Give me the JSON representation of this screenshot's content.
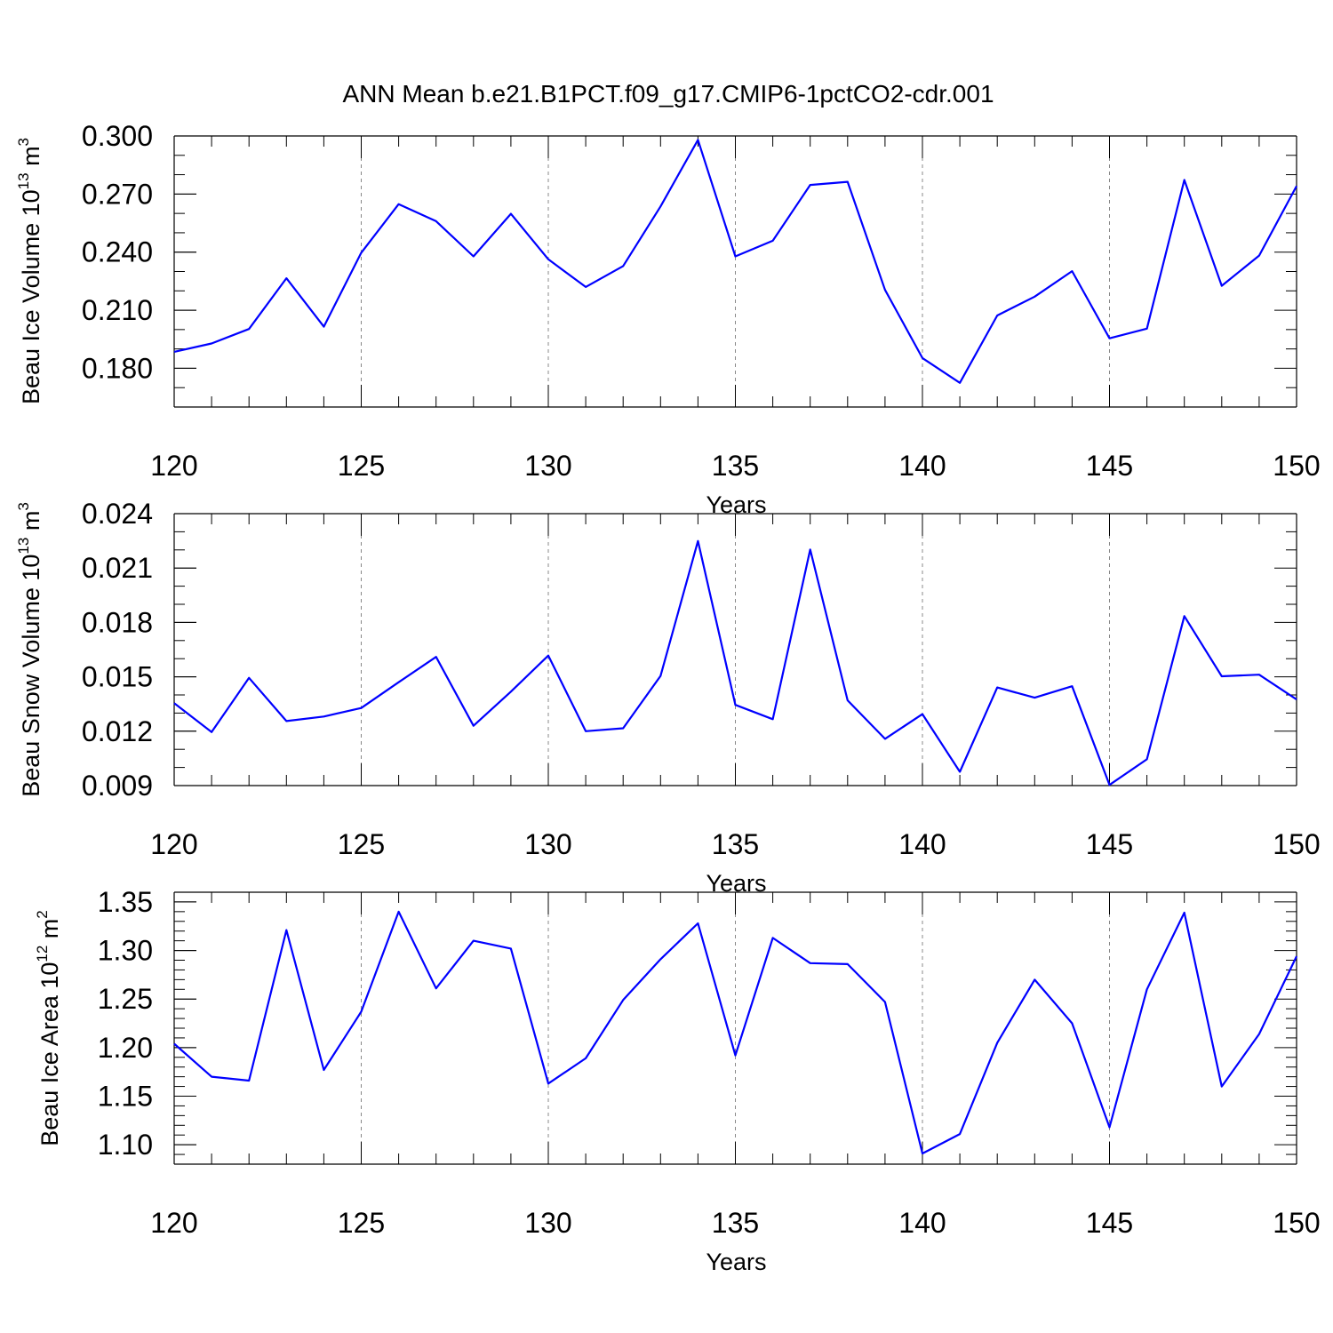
{
  "title": "ANN Mean b.e21.B1PCT.f09_g17.CMIP6-1pctCO2-cdr.001",
  "chart_data": [
    {
      "type": "line",
      "xlabel": "Years",
      "ylabel": {
        "base": "Beau Ice Volume 10",
        "exponent": "13",
        "unit": " m",
        "unit_exponent": "3"
      },
      "xlim": [
        120,
        150
      ],
      "ylim": [
        0.16,
        0.3
      ],
      "x_ticks": [
        120,
        125,
        130,
        135,
        140,
        145,
        150
      ],
      "x_tick_labels": [
        "120",
        "125",
        "130",
        "135",
        "140",
        "145",
        "150"
      ],
      "y_ticks": [
        0.18,
        0.21,
        0.24,
        0.27,
        0.3
      ],
      "y_tick_labels": [
        "0.180",
        "0.210",
        "0.240",
        "0.270",
        "0.300"
      ],
      "x_minor_step": 1,
      "y_minor_step": 0.01,
      "grid": "dashed vertical at major x ticks",
      "line_color": "#0000ff",
      "x": [
        120,
        121,
        122,
        123,
        124,
        125,
        126,
        127,
        128,
        129,
        130,
        131,
        132,
        133,
        134,
        135,
        136,
        137,
        138,
        139,
        140,
        141,
        142,
        143,
        144,
        145,
        146,
        147,
        148,
        149,
        150
      ],
      "values": [
        0.1885,
        0.1928,
        0.2003,
        0.2265,
        0.2015,
        0.2397,
        0.2648,
        0.256,
        0.2378,
        0.2598,
        0.2363,
        0.222,
        0.2328,
        0.2636,
        0.298,
        0.2378,
        0.2459,
        0.2747,
        0.2763,
        0.2205,
        0.1853,
        0.1725,
        0.2073,
        0.217,
        0.2302,
        0.1955,
        0.2005,
        0.2773,
        0.2226,
        0.2382,
        0.2741
      ]
    },
    {
      "type": "line",
      "xlabel": "Years",
      "ylabel": {
        "base": "Beau Snow Volume 10",
        "exponent": "13",
        "unit": " m",
        "unit_exponent": "3"
      },
      "xlim": [
        120,
        150
      ],
      "ylim": [
        0.009,
        0.024
      ],
      "x_ticks": [
        120,
        125,
        130,
        135,
        140,
        145,
        150
      ],
      "x_tick_labels": [
        "120",
        "125",
        "130",
        "135",
        "140",
        "145",
        "150"
      ],
      "y_ticks": [
        0.009,
        0.012,
        0.015,
        0.018,
        0.021,
        0.024
      ],
      "y_tick_labels": [
        "0.009",
        "0.012",
        "0.015",
        "0.018",
        "0.021",
        "0.024"
      ],
      "x_minor_step": 1,
      "y_minor_step": 0.001,
      "grid": "dashed vertical at major x ticks",
      "line_color": "#0000ff",
      "x": [
        120,
        121,
        122,
        123,
        124,
        125,
        126,
        127,
        128,
        129,
        130,
        131,
        132,
        133,
        134,
        135,
        136,
        137,
        138,
        139,
        140,
        141,
        142,
        143,
        144,
        145,
        146,
        147,
        148,
        149,
        150
      ],
      "values": [
        0.01355,
        0.01195,
        0.01494,
        0.01256,
        0.01281,
        0.01328,
        0.0147,
        0.0161,
        0.0123,
        0.01418,
        0.01617,
        0.012,
        0.01216,
        0.01505,
        0.02249,
        0.01345,
        0.01266,
        0.02202,
        0.0137,
        0.01158,
        0.01294,
        0.00976,
        0.01441,
        0.01385,
        0.01448,
        0.00904,
        0.01045,
        0.01835,
        0.01503,
        0.01512,
        0.01375
      ]
    },
    {
      "type": "line",
      "xlabel": "Years",
      "ylabel": {
        "base": "Beau Ice Area 10",
        "exponent": "12",
        "unit": " m",
        "unit_exponent": "2"
      },
      "xlim": [
        120,
        150
      ],
      "ylim": [
        1.08,
        1.36
      ],
      "x_ticks": [
        120,
        125,
        130,
        135,
        140,
        145,
        150
      ],
      "x_tick_labels": [
        "120",
        "125",
        "130",
        "135",
        "140",
        "145",
        "150"
      ],
      "y_ticks": [
        1.1,
        1.15,
        1.2,
        1.25,
        1.3,
        1.35
      ],
      "y_tick_labels": [
        "1.10",
        "1.15",
        "1.20",
        "1.25",
        "1.30",
        "1.35"
      ],
      "x_minor_step": 1,
      "y_minor_step": 0.01,
      "grid": "dashed vertical at major x ticks",
      "line_color": "#0000ff",
      "x": [
        120,
        121,
        122,
        123,
        124,
        125,
        126,
        127,
        128,
        129,
        130,
        131,
        132,
        133,
        134,
        135,
        136,
        137,
        138,
        139,
        140,
        141,
        142,
        143,
        144,
        145,
        146,
        147,
        148,
        149,
        150
      ],
      "values": [
        1.204,
        1.17,
        1.166,
        1.321,
        1.177,
        1.237,
        1.34,
        1.261,
        1.31,
        1.302,
        1.163,
        1.189,
        1.249,
        1.291,
        1.328,
        1.192,
        1.313,
        1.287,
        1.286,
        1.247,
        1.091,
        1.111,
        1.205,
        1.27,
        1.225,
        1.118,
        1.26,
        1.339,
        1.16,
        1.214,
        1.294
      ]
    }
  ]
}
